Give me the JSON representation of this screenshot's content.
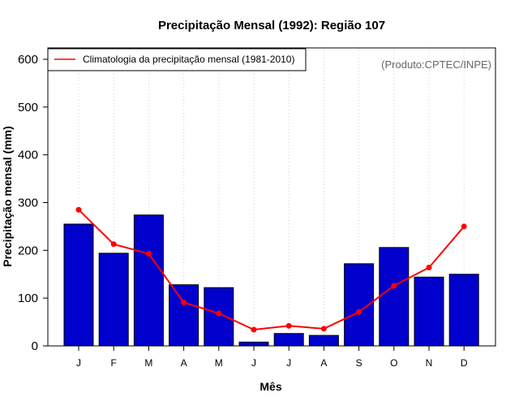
{
  "chart_data": {
    "type": "bar",
    "title": "Precipitação Mensal (1992): Região 107",
    "xlabel": "Mês",
    "ylabel": "Precipitação mensal (mm)",
    "ylim": [
      0,
      600
    ],
    "yticks": [
      0,
      100,
      200,
      300,
      400,
      500,
      600
    ],
    "categories": [
      "J",
      "F",
      "M",
      "A",
      "M",
      "J",
      "J",
      "A",
      "S",
      "O",
      "N",
      "D"
    ],
    "series": [
      {
        "name": "Precipitação mensal (1992)",
        "kind": "bar",
        "color": "#0000cc",
        "values": [
          255,
          194,
          274,
          128,
          122,
          8,
          26,
          22,
          172,
          206,
          144,
          150
        ]
      },
      {
        "name": "Climatologia da precipitação mensal (1981-2010)",
        "kind": "line",
        "color": "#ff0000",
        "values": [
          285,
          213,
          193,
          91,
          68,
          34,
          42,
          36,
          71,
          126,
          164,
          250
        ]
      }
    ],
    "legend": {
      "position": "top-left",
      "label": "Climatologia da precipitação mensal (1981-2010)"
    },
    "annotation": "(Produto:CPTEC/INPE)",
    "grid": "vertical-dotted"
  }
}
